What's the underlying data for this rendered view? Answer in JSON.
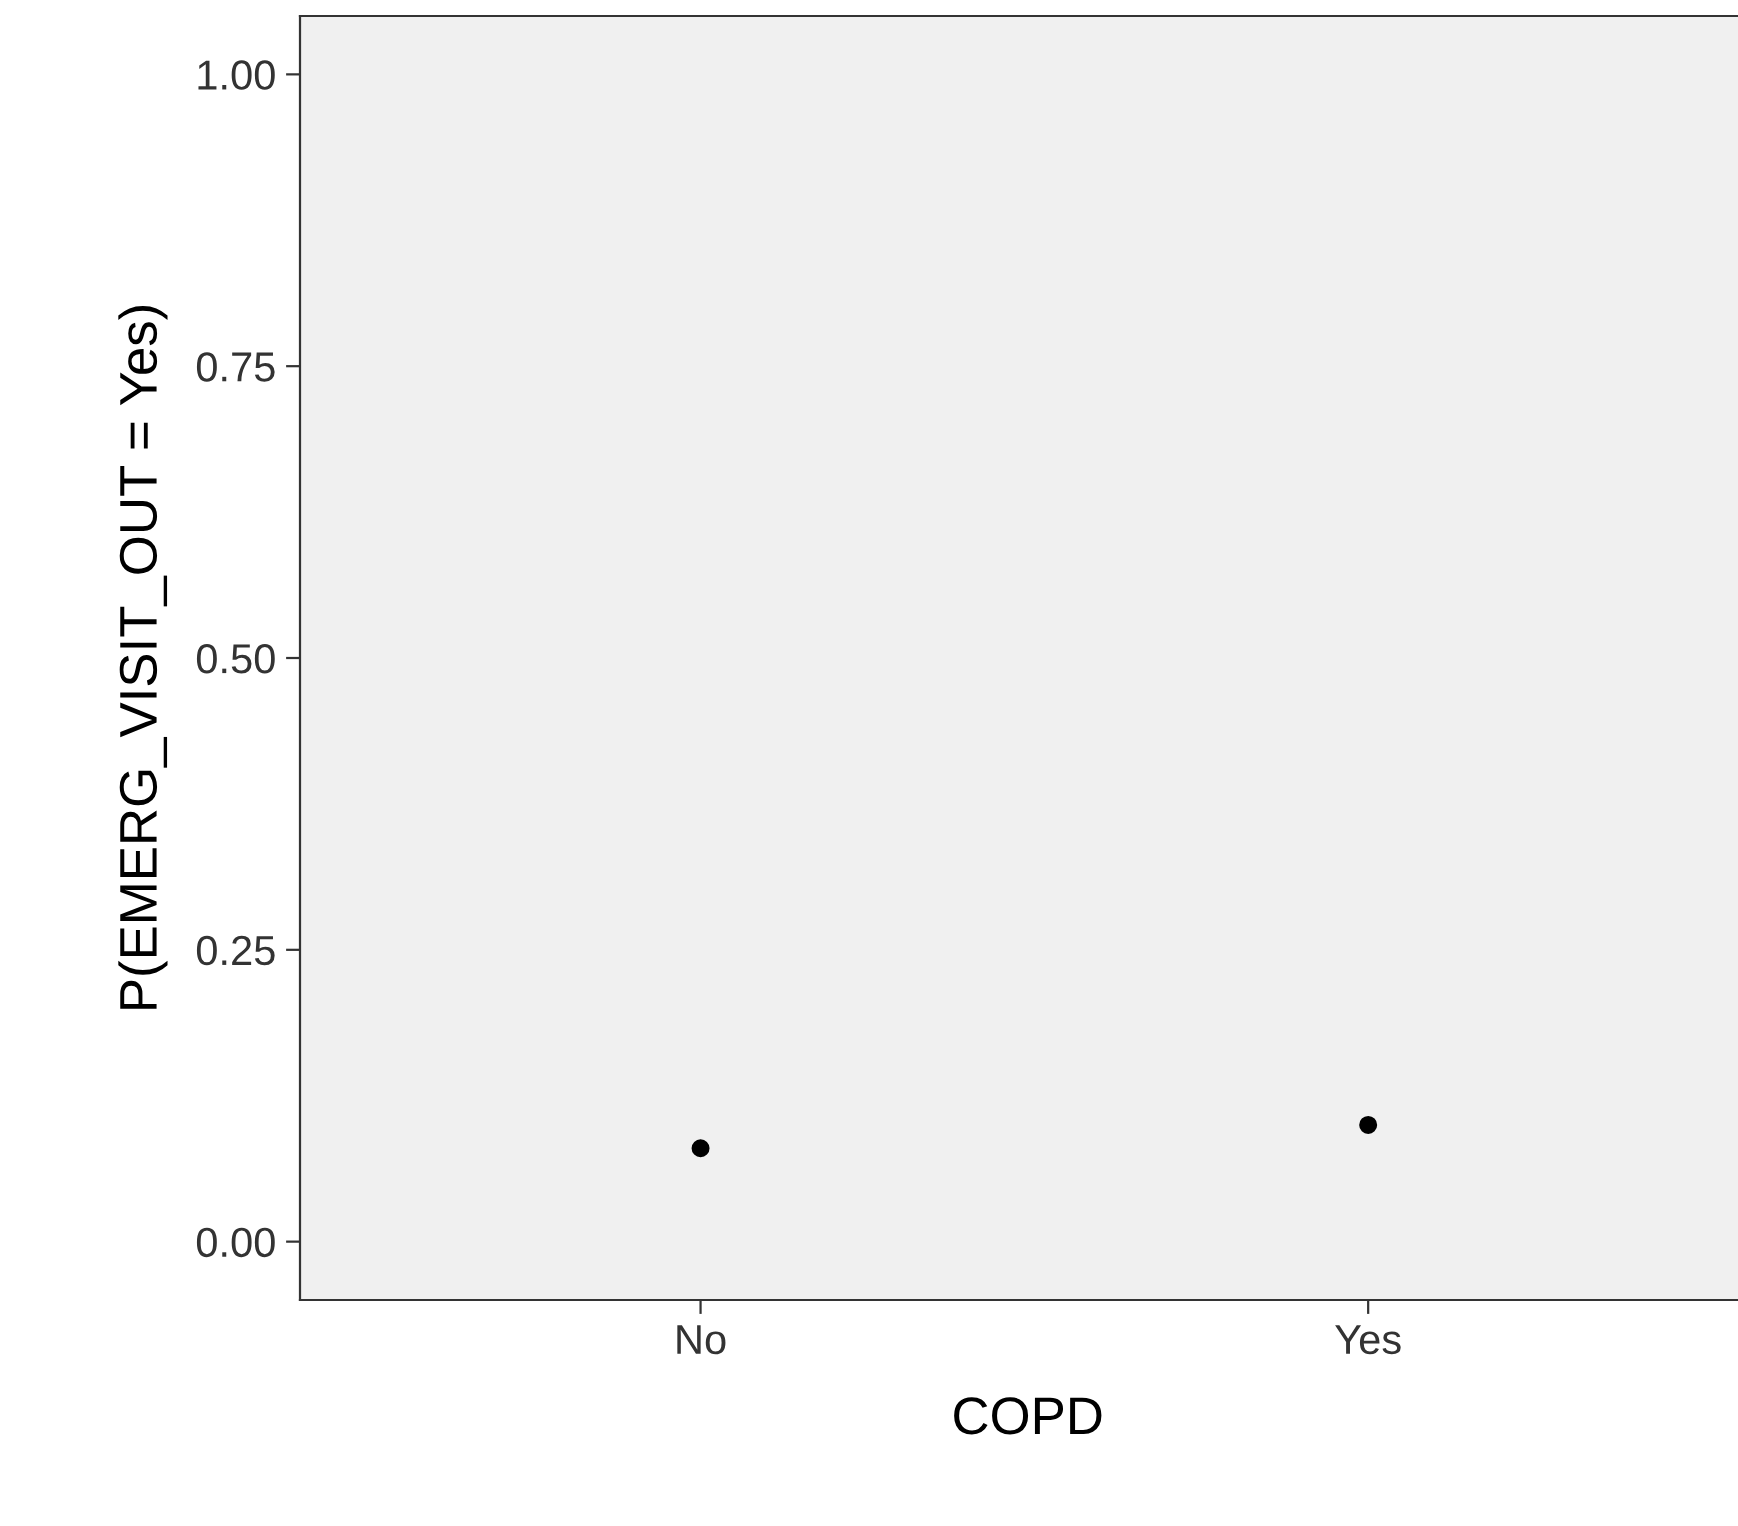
{
  "chart_data": {
    "type": "scatter",
    "xlabel": "COPD",
    "ylabel": "P(EMERG_VISIT_OUT = Yes)",
    "categories": [
      "No",
      "Yes"
    ],
    "series": [
      {
        "color": "#000000",
        "values": [
          0.08,
          0.1
        ]
      }
    ],
    "ylim": [
      -0.05,
      1.05
    ],
    "yticks": [
      {
        "value": 0,
        "label": "0.00"
      },
      {
        "value": 0.25,
        "label": "0.25"
      },
      {
        "value": 0.5,
        "label": "0.50"
      },
      {
        "value": 0.75,
        "label": "0.75"
      },
      {
        "value": 1,
        "label": "1.00"
      }
    ],
    "grid": false,
    "legend": false,
    "marker": "circle"
  }
}
